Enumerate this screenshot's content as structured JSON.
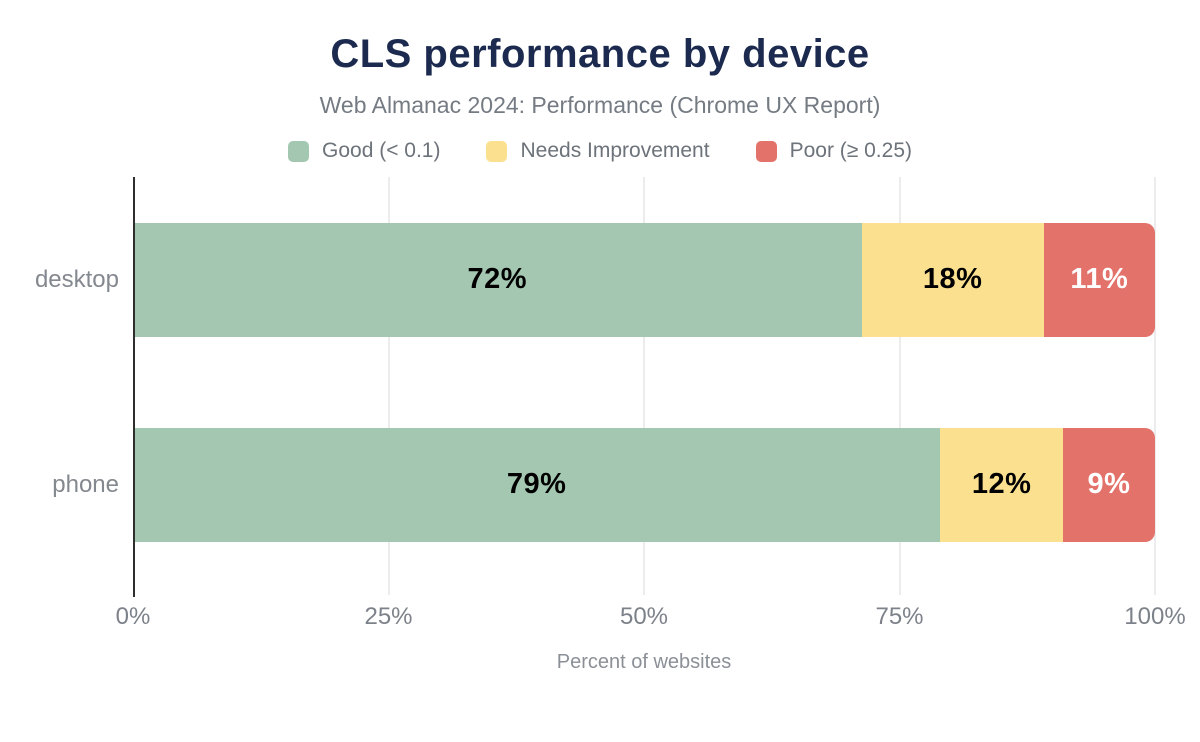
{
  "header": {
    "title": "CLS performance by device",
    "subtitle": "Web Almanac 2024: Performance (Chrome UX Report)"
  },
  "chart_data": {
    "type": "bar",
    "orientation": "horizontal",
    "stacked": true,
    "title": "CLS performance by device",
    "subtitle": "Web Almanac 2024: Performance (Chrome UX Report)",
    "xlabel": "Percent of websites",
    "categories": [
      "desktop",
      "phone"
    ],
    "series": [
      {
        "name": "Good (< 0.1)",
        "color": "#a4c7b2",
        "label_color": "#000000",
        "values": [
          72,
          79
        ]
      },
      {
        "name": "Needs Improvement",
        "color": "#fbe18f",
        "label_color": "#000000",
        "values": [
          18,
          12
        ]
      },
      {
        "name": "Poor (≥ 0.25)",
        "color": "#e3726b",
        "label_color": "#ffffff",
        "values": [
          11,
          9
        ]
      }
    ],
    "value_suffix": "%",
    "x_ticks": [
      "0%",
      "25%",
      "50%",
      "75%",
      "100%"
    ],
    "x_tick_positions": [
      0,
      25,
      50,
      75,
      100
    ],
    "xlim": [
      0,
      100
    ],
    "grid": true,
    "legend_position": "top",
    "colors": {
      "title": "#1b2a4e",
      "subtitle_text": "#757b83",
      "axis_line": "#2e2e2e",
      "gridline": "#ececec",
      "tick_text": "#7d828a"
    }
  }
}
